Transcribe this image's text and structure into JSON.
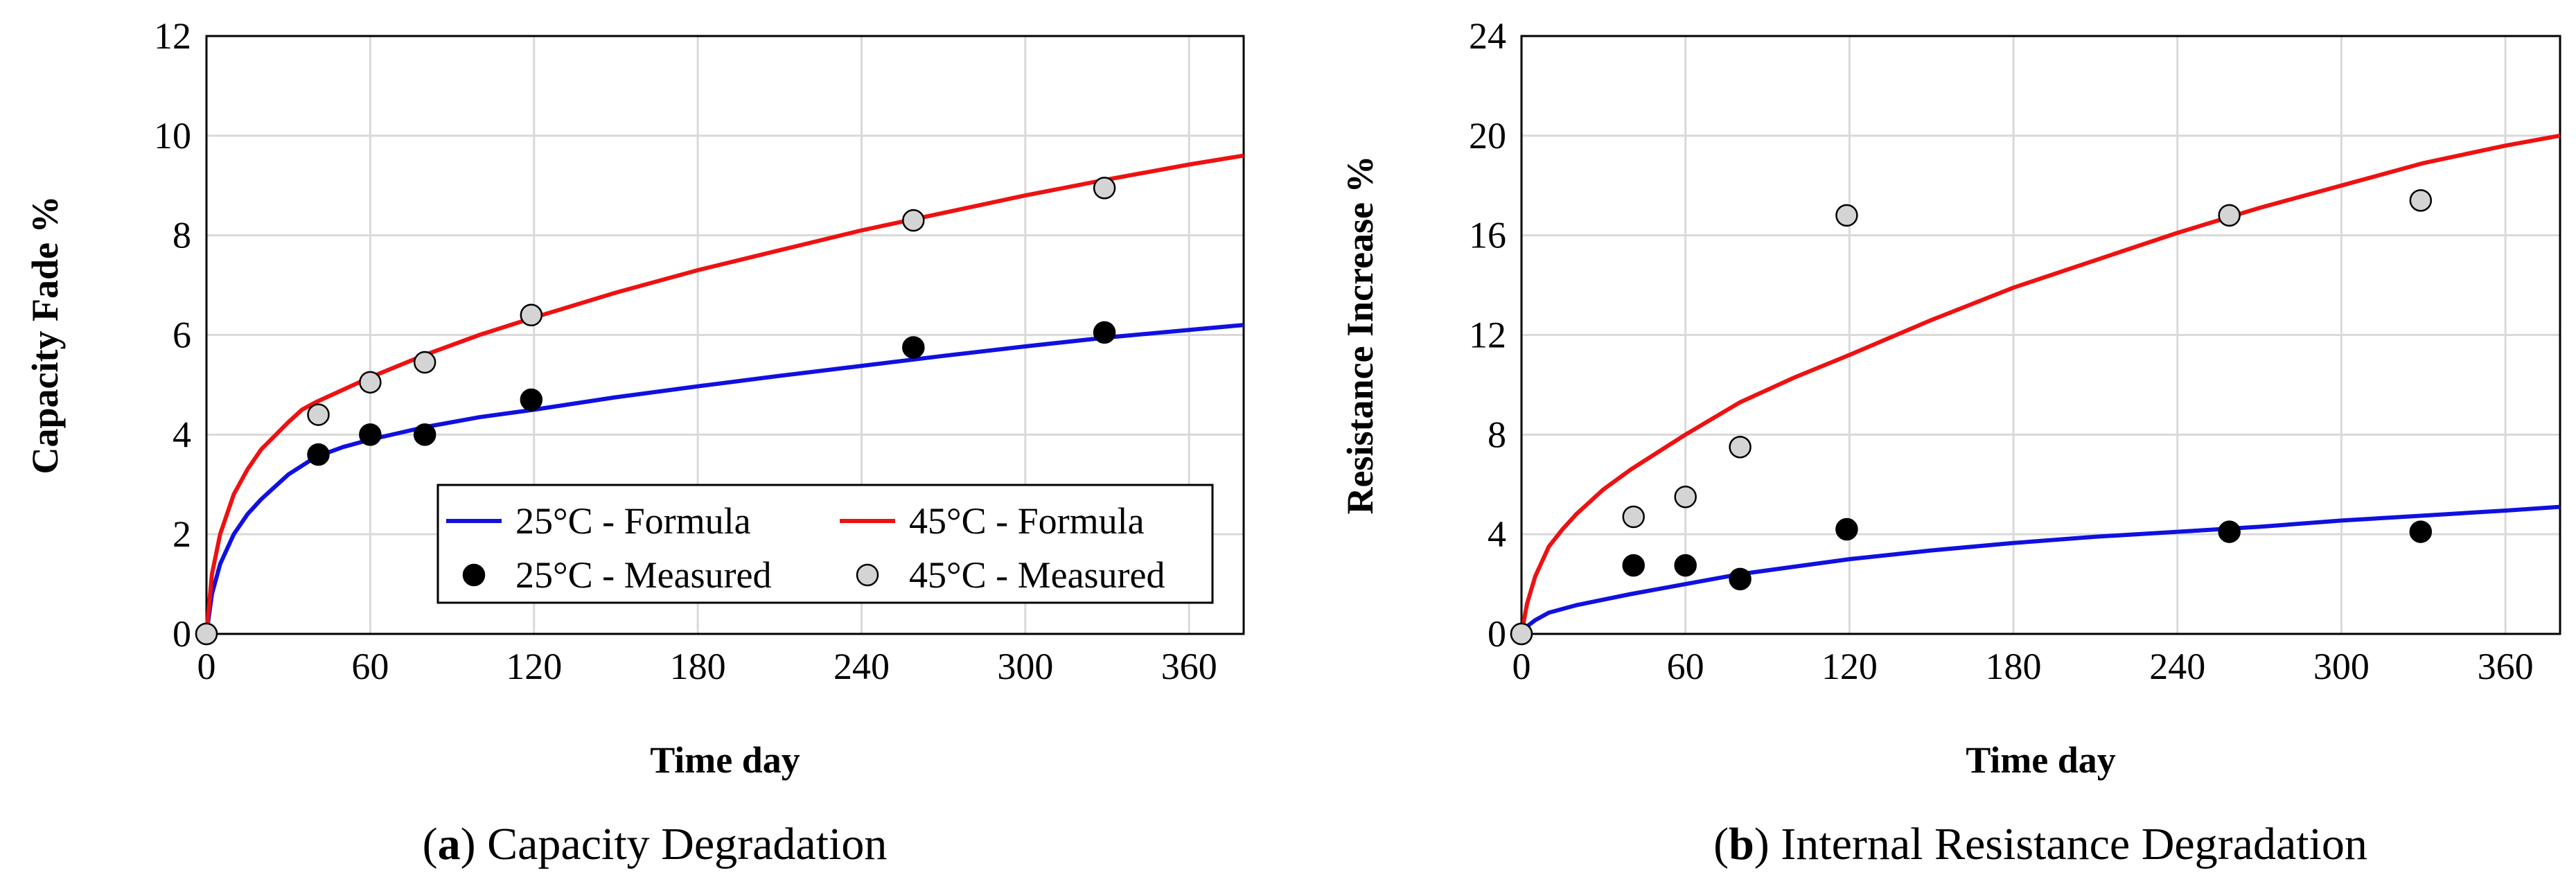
{
  "chart_data": [
    {
      "id": "a",
      "type": "line",
      "caption_letter": "a",
      "caption_text": "Capacity Degradation",
      "xlabel": "Time  day",
      "ylabel": "Capacity Fade  %",
      "xlim": [
        0,
        380
      ],
      "ylim": [
        0,
        12
      ],
      "xticks": [
        0,
        60,
        120,
        180,
        240,
        300,
        360
      ],
      "yticks": [
        0,
        2,
        4,
        6,
        8,
        10,
        12
      ],
      "grid": true,
      "legend": {
        "position": "bottom-right",
        "entries": [
          "25°C - Formula",
          "45°C - Formula",
          "25°C - Measured",
          "45°C - Measured"
        ]
      },
      "series": [
        {
          "name": "25°C - Formula",
          "kind": "line",
          "color": "#1010e0",
          "points": [
            [
              0,
              0
            ],
            [
              2,
              0.8
            ],
            [
              5,
              1.4
            ],
            [
              10,
              2.0
            ],
            [
              15,
              2.4
            ],
            [
              20,
              2.7
            ],
            [
              30,
              3.2
            ],
            [
              40,
              3.55
            ],
            [
              50,
              3.75
            ],
            [
              60,
              3.9
            ],
            [
              80,
              4.15
            ],
            [
              100,
              4.35
            ],
            [
              120,
              4.5
            ],
            [
              150,
              4.75
            ],
            [
              180,
              4.97
            ],
            [
              210,
              5.18
            ],
            [
              240,
              5.38
            ],
            [
              270,
              5.58
            ],
            [
              300,
              5.77
            ],
            [
              330,
              5.95
            ],
            [
              360,
              6.1
            ],
            [
              380,
              6.2
            ]
          ]
        },
        {
          "name": "45°C - Formula",
          "kind": "line",
          "color": "#ee1111",
          "points": [
            [
              0,
              0
            ],
            [
              2,
              1.2
            ],
            [
              5,
              2.0
            ],
            [
              10,
              2.8
            ],
            [
              15,
              3.3
            ],
            [
              20,
              3.7
            ],
            [
              30,
              4.25
            ],
            [
              35,
              4.5
            ],
            [
              40,
              4.65
            ],
            [
              50,
              4.9
            ],
            [
              60,
              5.15
            ],
            [
              80,
              5.6
            ],
            [
              100,
              6.0
            ],
            [
              120,
              6.35
            ],
            [
              150,
              6.85
            ],
            [
              180,
              7.3
            ],
            [
              210,
              7.7
            ],
            [
              240,
              8.1
            ],
            [
              270,
              8.45
            ],
            [
              300,
              8.8
            ],
            [
              330,
              9.12
            ],
            [
              360,
              9.42
            ],
            [
              380,
              9.6
            ]
          ]
        },
        {
          "name": "25°C - Measured",
          "kind": "marker",
          "fill": "#000000",
          "points": [
            [
              0,
              0
            ],
            [
              41,
              3.6
            ],
            [
              60,
              4.0
            ],
            [
              80,
              4.0
            ],
            [
              119,
              4.7
            ],
            [
              259,
              5.75
            ],
            [
              329,
              6.05
            ]
          ]
        },
        {
          "name": "45°C - Measured",
          "kind": "marker",
          "fill": "#d4d4d4",
          "points": [
            [
              0,
              0
            ],
            [
              41,
              4.4
            ],
            [
              60,
              5.05
            ],
            [
              80,
              5.45
            ],
            [
              119,
              6.4
            ],
            [
              259,
              8.3
            ],
            [
              329,
              8.95
            ]
          ]
        }
      ]
    },
    {
      "id": "b",
      "type": "line",
      "caption_letter": "b",
      "caption_text": "Internal Resistance Degradation",
      "xlabel": "Time  day",
      "ylabel": "Resistance Increase  %",
      "xlim": [
        0,
        380
      ],
      "ylim": [
        0,
        24
      ],
      "xticks": [
        0,
        60,
        120,
        180,
        240,
        300,
        360
      ],
      "yticks": [
        0,
        4,
        8,
        12,
        16,
        20,
        24
      ],
      "grid": true,
      "legend": null,
      "series": [
        {
          "name": "25°C - Formula",
          "kind": "line",
          "color": "#1010e0",
          "points": [
            [
              0,
              0
            ],
            [
              2,
              0.3
            ],
            [
              5,
              0.55
            ],
            [
              10,
              0.85
            ],
            [
              20,
              1.15
            ],
            [
              40,
              1.6
            ],
            [
              60,
              2.0
            ],
            [
              80,
              2.4
            ],
            [
              100,
              2.7
            ],
            [
              120,
              3.0
            ],
            [
              150,
              3.35
            ],
            [
              180,
              3.65
            ],
            [
              210,
              3.9
            ],
            [
              240,
              4.1
            ],
            [
              270,
              4.3
            ],
            [
              300,
              4.55
            ],
            [
              330,
              4.75
            ],
            [
              360,
              4.95
            ],
            [
              380,
              5.1
            ]
          ]
        },
        {
          "name": "45°C - Formula",
          "kind": "line",
          "color": "#ee1111",
          "points": [
            [
              0,
              0
            ],
            [
              2,
              1.2
            ],
            [
              5,
              2.3
            ],
            [
              10,
              3.5
            ],
            [
              15,
              4.2
            ],
            [
              20,
              4.8
            ],
            [
              30,
              5.8
            ],
            [
              40,
              6.6
            ],
            [
              60,
              8.0
            ],
            [
              80,
              9.3
            ],
            [
              100,
              10.3
            ],
            [
              120,
              11.2
            ],
            [
              150,
              12.6
            ],
            [
              180,
              13.9
            ],
            [
              210,
              15.0
            ],
            [
              240,
              16.1
            ],
            [
              270,
              17.1
            ],
            [
              300,
              18.0
            ],
            [
              330,
              18.9
            ],
            [
              360,
              19.6
            ],
            [
              380,
              20.0
            ]
          ]
        },
        {
          "name": "25°C - Measured",
          "kind": "marker",
          "fill": "#000000",
          "points": [
            [
              0,
              0
            ],
            [
              41,
              2.75
            ],
            [
              60,
              2.75
            ],
            [
              80,
              2.2
            ],
            [
              119,
              4.2
            ],
            [
              259,
              4.1
            ],
            [
              329,
              4.1
            ]
          ]
        },
        {
          "name": "45°C - Measured",
          "kind": "marker",
          "fill": "#d4d4d4",
          "points": [
            [
              0,
              0
            ],
            [
              41,
              4.7
            ],
            [
              60,
              5.5
            ],
            [
              80,
              7.5
            ],
            [
              119,
              16.8
            ],
            [
              259,
              16.8
            ],
            [
              329,
              17.4
            ]
          ]
        }
      ]
    }
  ]
}
